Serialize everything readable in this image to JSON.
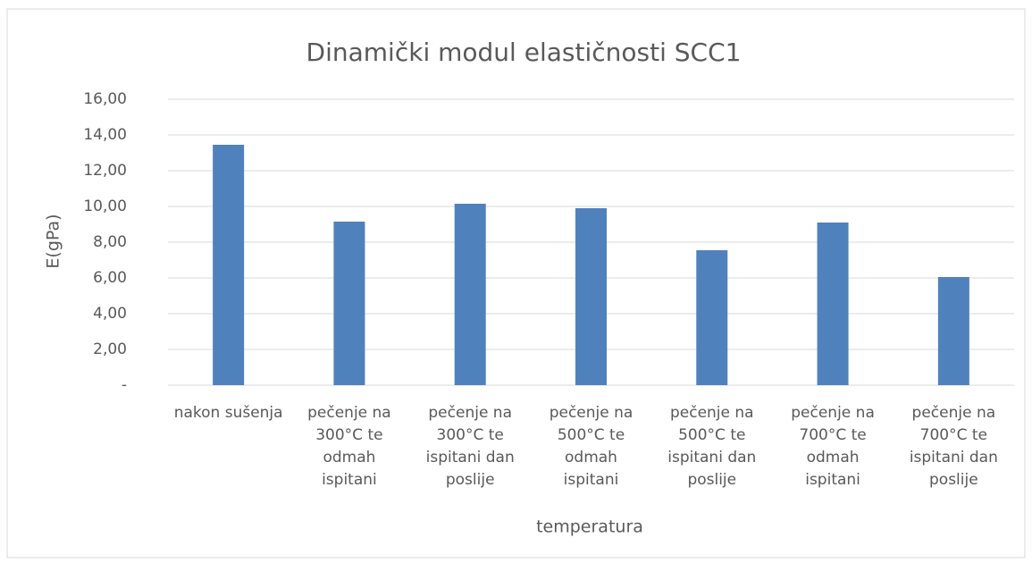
{
  "chart_data": {
    "type": "bar",
    "title": "Dinamički modul elastičnosti SCC1",
    "x_label": "temperatura",
    "y_label": "E(gPa)",
    "categories": [
      "nakon sušenja",
      "pečenje na 300°C te odmah ispitani",
      "pečenje na 300°C te ispitani dan poslije",
      "pečenje na 500°C te odmah ispitani",
      "pečenje na 500°C te ispitani dan poslije",
      "pečenje na 700°C te odmah ispitani",
      "pečenje na 700°C te ispitani dan poslije"
    ],
    "values": [
      13.45,
      9.15,
      10.15,
      9.9,
      7.55,
      9.1,
      6.05
    ],
    "color": "#4f81bd",
    "ylim": [
      0,
      16
    ],
    "yticks": [
      {
        "value": 0,
        "label": "-"
      },
      {
        "value": 2,
        "label": "2,00"
      },
      {
        "value": 4,
        "label": "4,00"
      },
      {
        "value": 6,
        "label": "6,00"
      },
      {
        "value": 8,
        "label": "8,00"
      },
      {
        "value": 10,
        "label": "10,00"
      },
      {
        "value": 12,
        "label": "12,00"
      },
      {
        "value": 14,
        "label": "14,00"
      },
      {
        "value": 16,
        "label": "16,00"
      }
    ],
    "grid": true
  }
}
